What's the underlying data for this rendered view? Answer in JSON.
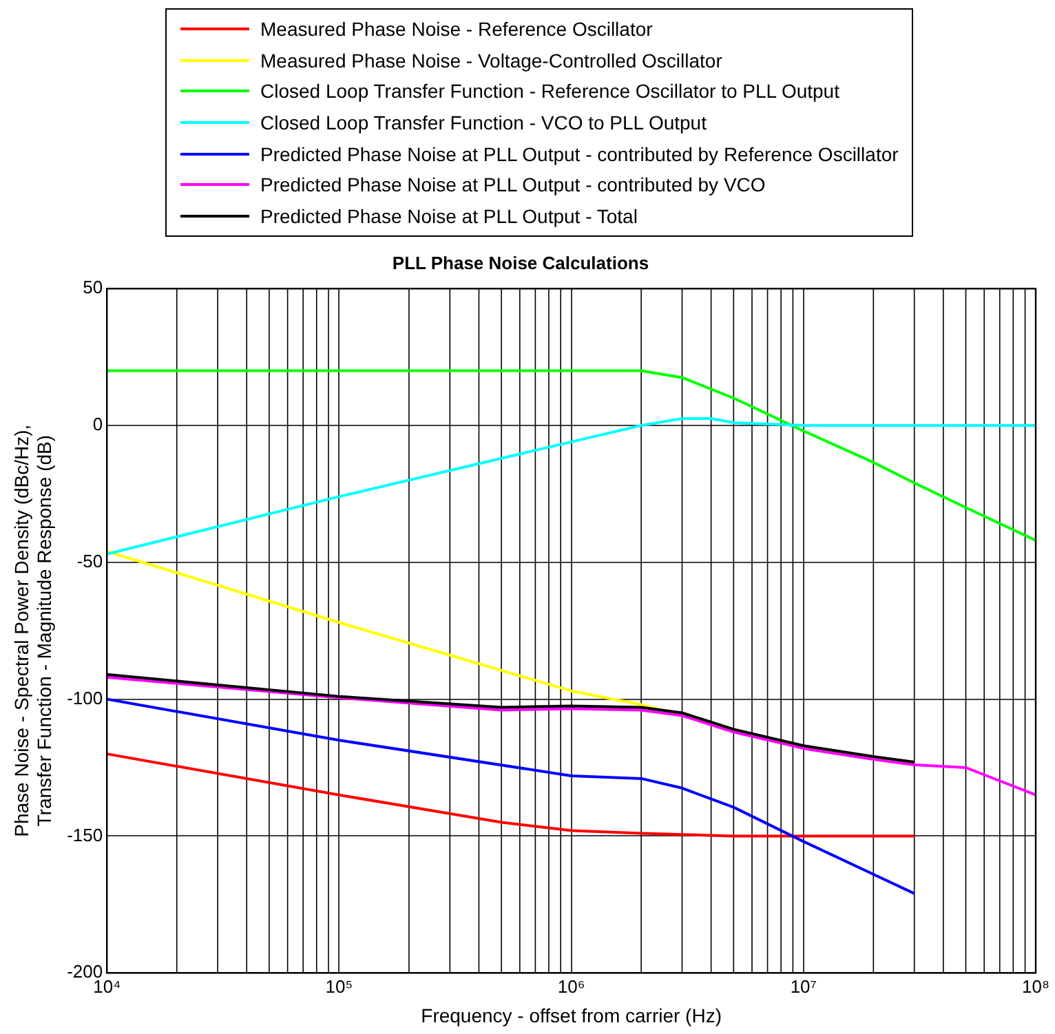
{
  "chart_data": {
    "type": "line",
    "title": "PLL Phase Noise Calculations",
    "xlabel": "Frequency - offset from carrier (Hz)",
    "ylabel": "Phase Noise - Spectral Power Density (dBc/Hz),\nTransfer Function - Magnitude Response (dB)",
    "log": "x",
    "grid": true,
    "legend": "top",
    "marker": "none",
    "line_style": "solid",
    "xlim": [
      10000,
      100000000
    ],
    "xticks": [
      {
        "value": 10000,
        "label": "10⁴"
      },
      {
        "value": 100000,
        "label": "10⁵"
      },
      {
        "value": 1000000,
        "label": "10⁶"
      },
      {
        "value": 10000000,
        "label": "10⁷"
      },
      {
        "value": 100000000,
        "label": "10⁸"
      }
    ],
    "ylim": [
      -200,
      50
    ],
    "yticks": [
      -200,
      -150,
      -100,
      -50,
      0,
      50
    ],
    "series": [
      {
        "name": "Measured Phase Noise - Reference Oscillator",
        "color": "#ff0000",
        "x": [
          10000,
          100000,
          500000,
          1000000,
          2000000,
          5000000,
          30000000
        ],
        "values": [
          -120,
          -135,
          -145,
          -148,
          -149,
          -150,
          -150
        ]
      },
      {
        "name": "Measured Phase Noise - Voltage-Controlled Oscillator",
        "color": "#ffff00",
        "x": [
          10000,
          100000,
          1000000,
          2000000,
          10000000,
          30000000
        ],
        "values": [
          -46,
          -72,
          -97,
          -102,
          -118,
          -123
        ]
      },
      {
        "name": "Closed Loop Transfer Function - Reference Oscillator to PLL Output",
        "color": "#00ff00",
        "x": [
          10000,
          2000000,
          3000000,
          5000000,
          10000000,
          20000000,
          30000000,
          50000000,
          100000000
        ],
        "values": [
          20,
          20,
          17.5,
          10,
          -2,
          -13.5,
          -21,
          -30,
          -42
        ]
      },
      {
        "name": "Closed Loop Transfer Function - VCO to PLL Output",
        "color": "#00ffff",
        "x": [
          10000,
          100000,
          1000000,
          2000000,
          3000000,
          4000000,
          5000000,
          10000000,
          100000000
        ],
        "values": [
          -47,
          -26,
          -6,
          0,
          2.5,
          2.5,
          1,
          0,
          0
        ]
      },
      {
        "name": "Predicted Phase Noise at PLL Output - contributed by Reference Oscillator",
        "color": "#0000ff",
        "x": [
          10000,
          100000,
          1000000,
          2000000,
          3000000,
          5000000,
          10000000,
          20000000,
          30000000
        ],
        "values": [
          -100,
          -115,
          -128,
          -129,
          -132.5,
          -139.5,
          -152,
          -164,
          -171
        ]
      },
      {
        "name": "Predicted Phase Noise at PLL Output - contributed by VCO",
        "color": "#ff00ff",
        "x": [
          10000,
          100000,
          500000,
          1000000,
          2000000,
          3000000,
          5000000,
          10000000,
          20000000,
          30000000,
          50000000,
          100000000
        ],
        "values": [
          -92,
          -99.5,
          -104,
          -103.5,
          -104,
          -106,
          -112,
          -118,
          -122,
          -124,
          -125,
          -135
        ]
      },
      {
        "name": "Predicted Phase Noise at PLL Output - Total",
        "color": "#000000",
        "x": [
          10000,
          100000,
          500000,
          1000000,
          2000000,
          3000000,
          5000000,
          10000000,
          20000000,
          30000000
        ],
        "values": [
          -91,
          -99,
          -103,
          -102.5,
          -103,
          -105,
          -111,
          -117,
          -121,
          -123
        ]
      }
    ]
  }
}
